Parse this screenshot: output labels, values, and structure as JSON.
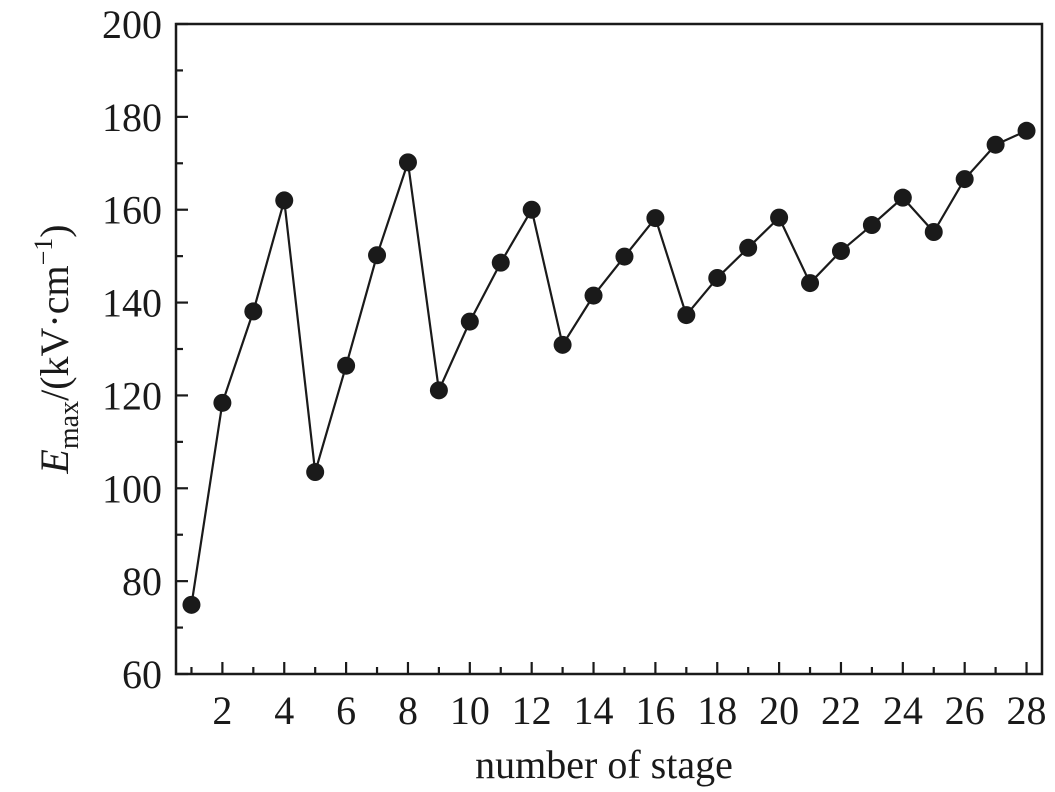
{
  "chart_data": {
    "type": "line",
    "title": "",
    "xlabel": "number of stage",
    "ylabel": {
      "symbol": "E",
      "subscript": "max",
      "unit_prefix": "/(kV·cm",
      "unit_exponent": "−1",
      "unit_suffix": ")"
    },
    "x": [
      1,
      2,
      3,
      4,
      5,
      6,
      7,
      8,
      9,
      10,
      11,
      12,
      13,
      14,
      15,
      16,
      17,
      18,
      19,
      20,
      21,
      22,
      23,
      24,
      25,
      26,
      27,
      28
    ],
    "series": [
      {
        "values": [
          74.9,
          118.4,
          138.1,
          162.0,
          103.5,
          126.4,
          150.2,
          170.2,
          121.1,
          135.9,
          148.6,
          160.0,
          130.9,
          141.5,
          149.9,
          158.2,
          137.3,
          145.3,
          151.8,
          158.3,
          144.2,
          151.1,
          156.7,
          162.6,
          155.2,
          166.6,
          174.0,
          177.0
        ],
        "color": "#1a1a1a",
        "marker": "filled-circle"
      }
    ],
    "xlim": [
      0.5,
      28.5
    ],
    "ylim": [
      60,
      200
    ],
    "x_ticks": [
      "2",
      "4",
      "6",
      "8",
      "10",
      "12",
      "14",
      "16",
      "18",
      "20",
      "22",
      "24",
      "26",
      "28"
    ],
    "y_ticks": [
      "60",
      "80",
      "100",
      "120",
      "140",
      "160",
      "180",
      "200"
    ],
    "grid": false,
    "legend": "none"
  }
}
